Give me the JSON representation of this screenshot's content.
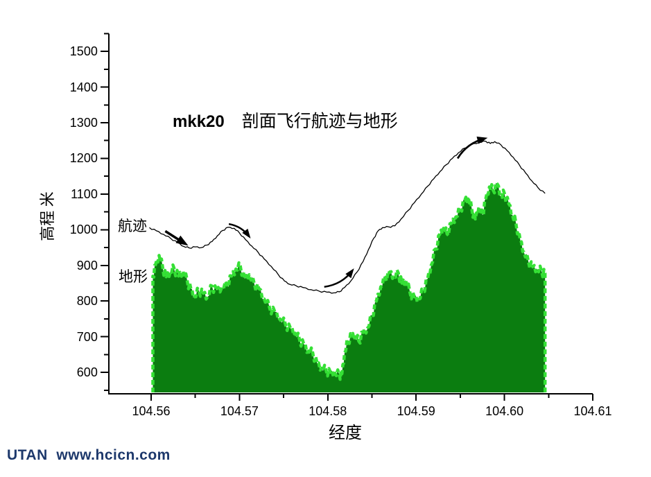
{
  "title": {
    "prefix": "mkk20",
    "text": "剖面飞行航迹与地形"
  },
  "axes": {
    "y_label": "高程 米",
    "x_label": "经度"
  },
  "annotations": {
    "trajectory": "航迹",
    "terrain": "地形"
  },
  "footer": {
    "text": "UTAN  www.hcicn.com",
    "color": "#1d386b"
  },
  "colors": {
    "terrain_fill": "#0b7d10",
    "terrain_outline": "#35e035",
    "trajectory_line": "#000000",
    "axis": "#000000",
    "background": "#ffffff"
  },
  "chart_data": {
    "type": "area",
    "title": "mkk20 剖面飞行航迹与地形",
    "xlabel": "经度",
    "ylabel": "高程 米",
    "xlim": [
      104.5552,
      104.61
    ],
    "ylim": [
      540,
      1550
    ],
    "grid": false,
    "legend_position": "inline-left",
    "x_ticks": [
      104.56,
      104.57,
      104.58,
      104.59,
      104.6,
      104.61
    ],
    "x_tick_labels": [
      "104.56",
      "104.57",
      "104.58",
      "104.59",
      "104.60",
      "104.61"
    ],
    "x_minor_ticks": [
      104.565,
      104.575,
      104.585,
      104.595,
      104.605
    ],
    "y_ticks": [
      600,
      700,
      800,
      900,
      1000,
      1100,
      1200,
      1300,
      1400,
      1500
    ],
    "y_minor_ticks": [
      550,
      650,
      750,
      850,
      950,
      1050,
      1150,
      1250,
      1350,
      1450,
      1550
    ],
    "series": [
      {
        "name": "地形",
        "type": "area",
        "points": [
          [
            104.5602,
            870
          ],
          [
            104.5605,
            902
          ],
          [
            104.5609,
            928
          ],
          [
            104.5613,
            895
          ],
          [
            104.5617,
            868
          ],
          [
            104.5622,
            884
          ],
          [
            104.5626,
            892
          ],
          [
            104.5631,
            870
          ],
          [
            104.5636,
            884
          ],
          [
            104.5641,
            855
          ],
          [
            104.5645,
            835
          ],
          [
            104.5649,
            812
          ],
          [
            104.5654,
            830
          ],
          [
            104.5659,
            822
          ],
          [
            104.5664,
            812
          ],
          [
            104.5669,
            842
          ],
          [
            104.5674,
            830
          ],
          [
            104.568,
            838
          ],
          [
            104.5686,
            846
          ],
          [
            104.5691,
            870
          ],
          [
            104.5696,
            890
          ],
          [
            104.5701,
            898
          ],
          [
            104.5706,
            862
          ],
          [
            104.5711,
            874
          ],
          [
            104.5717,
            846
          ],
          [
            104.5722,
            835
          ],
          [
            104.5728,
            806
          ],
          [
            104.5734,
            782
          ],
          [
            104.574,
            770
          ],
          [
            104.5746,
            750
          ],
          [
            104.5752,
            736
          ],
          [
            104.5758,
            722
          ],
          [
            104.5763,
            710
          ],
          [
            104.5768,
            692
          ],
          [
            104.5773,
            678
          ],
          [
            104.5778,
            660
          ],
          [
            104.5783,
            655
          ],
          [
            104.5788,
            625
          ],
          [
            104.5793,
            612
          ],
          [
            104.5798,
            606
          ],
          [
            104.5803,
            600
          ],
          [
            104.5808,
            598
          ],
          [
            104.5813,
            594
          ],
          [
            104.5816,
            596
          ],
          [
            104.5819,
            655
          ],
          [
            104.5823,
            690
          ],
          [
            104.5827,
            705
          ],
          [
            104.5831,
            700
          ],
          [
            104.5835,
            688
          ],
          [
            104.584,
            712
          ],
          [
            104.5845,
            724
          ],
          [
            104.585,
            760
          ],
          [
            104.5855,
            800
          ],
          [
            104.586,
            840
          ],
          [
            104.5865,
            866
          ],
          [
            104.587,
            880
          ],
          [
            104.5875,
            870
          ],
          [
            104.588,
            878
          ],
          [
            104.5884,
            850
          ],
          [
            104.5888,
            860
          ],
          [
            104.5893,
            824
          ],
          [
            104.5898,
            812
          ],
          [
            104.5903,
            805
          ],
          [
            104.5908,
            830
          ],
          [
            104.5913,
            862
          ],
          [
            104.5917,
            900
          ],
          [
            104.5922,
            946
          ],
          [
            104.5927,
            988
          ],
          [
            104.5931,
            1004
          ],
          [
            104.5935,
            988
          ],
          [
            104.594,
            1018
          ],
          [
            104.5945,
            1036
          ],
          [
            104.595,
            1058
          ],
          [
            104.5955,
            1082
          ],
          [
            104.5959,
            1092
          ],
          [
            104.5963,
            1058
          ],
          [
            104.5967,
            1030
          ],
          [
            104.5971,
            1064
          ],
          [
            104.5975,
            1042
          ],
          [
            104.5979,
            1088
          ],
          [
            104.5983,
            1120
          ],
          [
            104.5987,
            1112
          ],
          [
            104.5992,
            1128
          ],
          [
            104.5996,
            1094
          ],
          [
            104.6,
            1102
          ],
          [
            104.6005,
            1072
          ],
          [
            104.6009,
            1042
          ],
          [
            104.6013,
            1018
          ],
          [
            104.6018,
            970
          ],
          [
            104.6022,
            938
          ],
          [
            104.6027,
            912
          ],
          [
            104.6032,
            896
          ],
          [
            104.6037,
            890
          ],
          [
            104.6042,
            884
          ],
          [
            104.6046,
            878
          ]
        ]
      },
      {
        "name": "航迹",
        "type": "line",
        "points": [
          [
            104.5598,
            1006
          ],
          [
            104.5606,
            997
          ],
          [
            104.5614,
            987
          ],
          [
            104.5622,
            976
          ],
          [
            104.563,
            964
          ],
          [
            104.5637,
            953
          ],
          [
            104.5643,
            949
          ],
          [
            104.565,
            952
          ],
          [
            104.5657,
            950
          ],
          [
            104.5663,
            957
          ],
          [
            104.5669,
            967
          ],
          [
            104.5675,
            983
          ],
          [
            104.5681,
            998
          ],
          [
            104.5687,
            1007
          ],
          [
            104.5694,
            1004
          ],
          [
            104.57,
            991
          ],
          [
            104.5707,
            972
          ],
          [
            104.5714,
            954
          ],
          [
            104.5721,
            937
          ],
          [
            104.5728,
            918
          ],
          [
            104.5736,
            897
          ],
          [
            104.5744,
            874
          ],
          [
            104.5751,
            856
          ],
          [
            104.5757,
            847
          ],
          [
            104.5764,
            843
          ],
          [
            104.5772,
            838
          ],
          [
            104.5781,
            832
          ],
          [
            104.579,
            828
          ],
          [
            104.5799,
            825
          ],
          [
            104.5807,
            823
          ],
          [
            104.5813,
            826
          ],
          [
            104.5819,
            838
          ],
          [
            104.5826,
            856
          ],
          [
            104.5833,
            881
          ],
          [
            104.584,
            911
          ],
          [
            104.5846,
            944
          ],
          [
            104.5852,
            976
          ],
          [
            104.5857,
            997
          ],
          [
            104.5862,
            1006
          ],
          [
            104.5869,
            1008
          ],
          [
            104.5876,
            1011
          ],
          [
            104.5883,
            1030
          ],
          [
            104.5891,
            1054
          ],
          [
            104.5898,
            1076
          ],
          [
            104.5906,
            1100
          ],
          [
            104.5913,
            1122
          ],
          [
            104.592,
            1143
          ],
          [
            104.5927,
            1163
          ],
          [
            104.5934,
            1182
          ],
          [
            104.5941,
            1200
          ],
          [
            104.5948,
            1216
          ],
          [
            104.5955,
            1229
          ],
          [
            104.5963,
            1239
          ],
          [
            104.5971,
            1245
          ],
          [
            104.5979,
            1248
          ],
          [
            104.5984,
            1242
          ],
          [
            104.5989,
            1247
          ],
          [
            104.5996,
            1238
          ],
          [
            104.6003,
            1222
          ],
          [
            104.601,
            1203
          ],
          [
            104.6017,
            1181
          ],
          [
            104.6024,
            1159
          ],
          [
            104.6031,
            1137
          ],
          [
            104.6038,
            1118
          ],
          [
            104.6046,
            1102
          ]
        ]
      }
    ],
    "direction_arrows": [
      {
        "tail": [
          104.5616,
          996
        ],
        "head": [
          104.5639,
          960
        ],
        "bend": 0,
        "weight": 3.5,
        "head_size": 15
      },
      {
        "tail": [
          104.5688,
          1016
        ],
        "head": [
          104.5711,
          981
        ],
        "bend": 7,
        "weight": 2.5,
        "head_size": 12
      },
      {
        "tail": [
          104.5796,
          840
        ],
        "head": [
          104.5828,
          886
        ],
        "bend": -10,
        "weight": 2.5,
        "head_size": 12
      },
      {
        "tail": [
          104.5947,
          1200
        ],
        "head": [
          104.5978,
          1256
        ],
        "bend": 10,
        "weight": 2.8,
        "head_size": 13
      }
    ]
  }
}
